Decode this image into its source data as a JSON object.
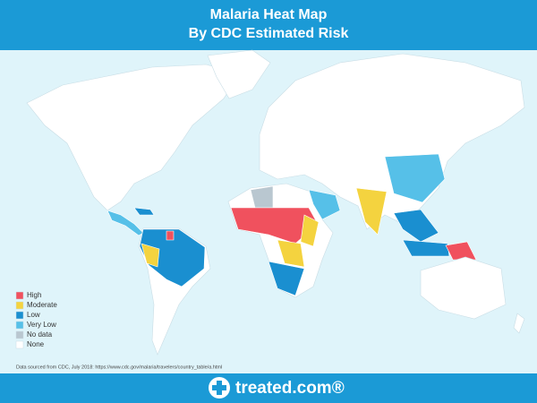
{
  "header": {
    "title_line1": "Malaria Heat Map",
    "title_line2": "By CDC Estimated Risk"
  },
  "legend": {
    "items": [
      {
        "label": "High",
        "color": "#f0515e"
      },
      {
        "label": "Moderate",
        "color": "#f4d33f"
      },
      {
        "label": "Low",
        "color": "#1a8fd0"
      },
      {
        "label": "Very Low",
        "color": "#56c0e8"
      },
      {
        "label": "No data",
        "color": "#b9c7d0"
      },
      {
        "label": "None",
        "color": "#ffffff"
      }
    ]
  },
  "source": "Data sourced from CDC, July 2018: https://www.cdc.gov/malaria/travelers/country_table/a.html",
  "footer": {
    "brand": "treated.com®"
  }
}
